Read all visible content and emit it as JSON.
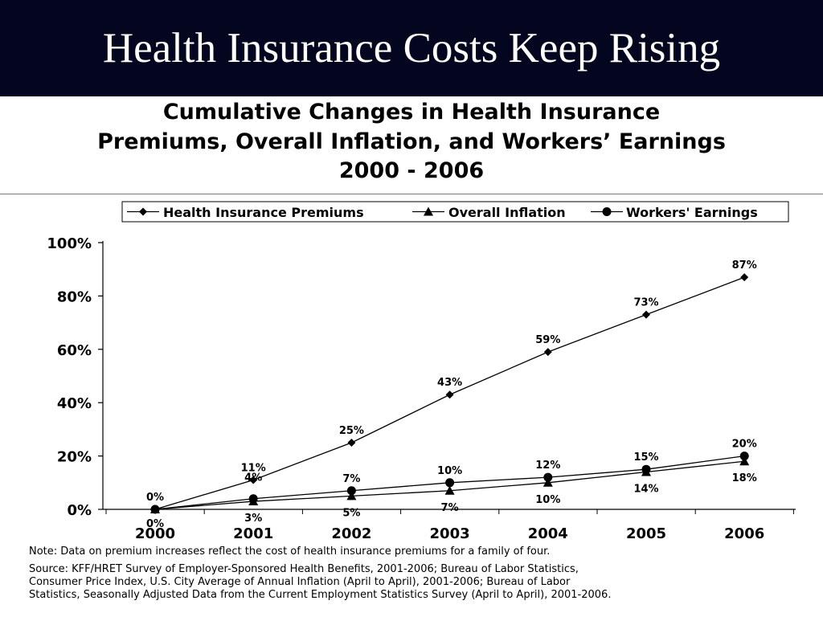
{
  "slide": {
    "title": "Health Insurance Costs Keep Rising",
    "header_bg": "#04051e"
  },
  "chart_data": {
    "type": "line",
    "title_lines": [
      "Cumulative Changes in Health Insurance",
      "Premiums, Overall Inflation, and Workers’ Earnings",
      "2000 - 2006"
    ],
    "x": [
      "2000",
      "2001",
      "2002",
      "2003",
      "2004",
      "2005",
      "2006"
    ],
    "ylim": [
      0,
      100
    ],
    "yticks": [
      "0%",
      "20%",
      "40%",
      "60%",
      "80%",
      "100%"
    ],
    "grid": false,
    "legend": "top",
    "series": [
      {
        "name": "Health Insurance Premiums",
        "marker": "diamond",
        "values": [
          0,
          11,
          25,
          43,
          59,
          73,
          87
        ],
        "labels": [
          "0%",
          "11%",
          "25%",
          "43%",
          "59%",
          "73%",
          "87%"
        ]
      },
      {
        "name": "Overall Inflation",
        "marker": "triangle",
        "values": [
          0,
          3,
          5,
          7,
          10,
          14,
          18
        ],
        "labels": [
          "0%",
          "3%",
          "5%",
          "7%",
          "10%",
          "14%",
          "18%"
        ]
      },
      {
        "name": "Workers' Earnings",
        "marker": "circle",
        "values": [
          0,
          4,
          7,
          10,
          12,
          15,
          20
        ],
        "labels": [
          "",
          "4%",
          "7%",
          "10%",
          "12%",
          "15%",
          "20%"
        ]
      }
    ]
  },
  "notes": {
    "note": "Note:   Data on premium increases reflect the cost of health insurance premiums for a family of four.",
    "source_lines": [
      "Source: KFF/HRET Survey of Employer-Sponsored Health Benefits, 2001-2006; Bureau of Labor Statistics,",
      "Consumer Price Index, U.S. City Average of Annual Inflation (April to April), 2001-2006; Bureau of Labor",
      "Statistics, Seasonally Adjusted Data from the Current Employment Statistics Survey (April to April), 2001-2006."
    ]
  }
}
